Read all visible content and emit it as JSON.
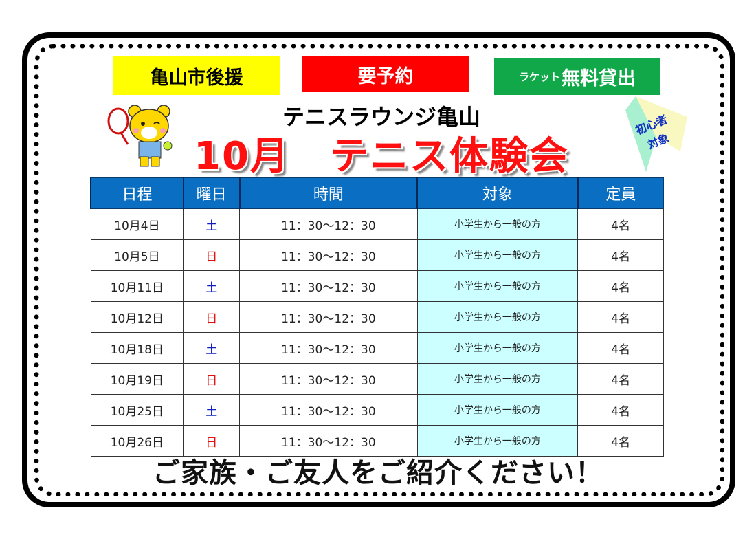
{
  "badges": {
    "support": "亀山市後援",
    "reservation": "要予約",
    "racket_small": "ラケット",
    "racket": "無料貸出"
  },
  "venue": "テニスラウンジ亀山",
  "title": "10月　テニス体験会",
  "tag": {
    "line1": "初心者",
    "line2": "対象"
  },
  "table": {
    "headers": [
      "日程",
      "曜日",
      "時間",
      "対象",
      "定員"
    ],
    "rows": [
      {
        "date": "10月4日",
        "day": "土",
        "time": "11：30〜12：30",
        "target": "小学生から一般の方",
        "capacity": "4名"
      },
      {
        "date": "10月5日",
        "day": "日",
        "time": "11：30〜12：30",
        "target": "小学生から一般の方",
        "capacity": "4名"
      },
      {
        "date": "10月11日",
        "day": "土",
        "time": "11：30〜12：30",
        "target": "小学生から一般の方",
        "capacity": "4名"
      },
      {
        "date": "10月12日",
        "day": "日",
        "time": "11：30〜12：30",
        "target": "小学生から一般の方",
        "capacity": "4名"
      },
      {
        "date": "10月18日",
        "day": "土",
        "time": "11：30〜12：30",
        "target": "小学生から一般の方",
        "capacity": "4名"
      },
      {
        "date": "10月19日",
        "day": "日",
        "time": "11：30〜12：30",
        "target": "小学生から一般の方",
        "capacity": "4名"
      },
      {
        "date": "10月25日",
        "day": "土",
        "time": "11：30〜12：30",
        "target": "小学生から一般の方",
        "capacity": "4名"
      },
      {
        "date": "10月26日",
        "day": "日",
        "time": "11：30〜12：30",
        "target": "小学生から一般の方",
        "capacity": "4名"
      }
    ]
  },
  "footer": "ご家族・ご友人をご紹介ください！",
  "colors": {
    "header": "#0a6fc2",
    "saturday": "#1020c0",
    "sunday": "#e01010",
    "title": "#ff1010",
    "target_cell": "#ccffff"
  }
}
